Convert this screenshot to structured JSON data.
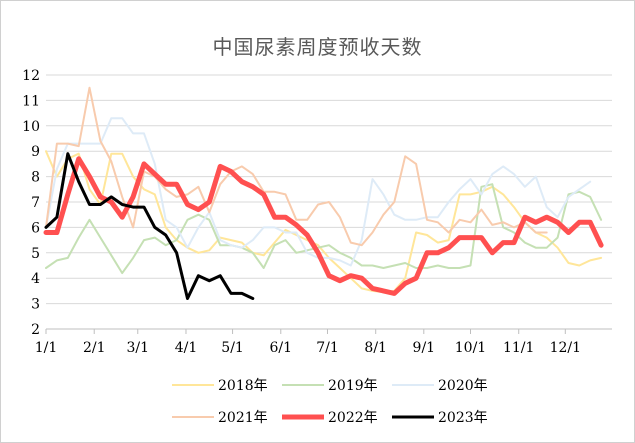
{
  "chart_data": {
    "type": "line",
    "title": "中国尿素周度预收天数",
    "xlabel": "",
    "ylabel": "",
    "ylim": [
      2,
      12
    ],
    "yticks": [
      2,
      3,
      4,
      5,
      6,
      7,
      8,
      9,
      10,
      11,
      12
    ],
    "x_tick_labels": [
      "1/1",
      "2/1",
      "3/1",
      "4/1",
      "5/1",
      "6/1",
      "7/1",
      "8/1",
      "9/1",
      "10/1",
      "11/1",
      "12/1"
    ],
    "x_tick_weeks": [
      0,
      4.43,
      8.43,
      12.86,
      17.14,
      21.57,
      25.86,
      30.29,
      34.71,
      39,
      43.43,
      47.71
    ],
    "x_range_weeks": [
      0,
      52
    ],
    "grid": "horizontal",
    "legend_position": "bottom",
    "series": [
      {
        "name": "2018年",
        "color": "#ffe699",
        "width": 2,
        "values": [
          9.0,
          8.0,
          8.7,
          8.9,
          7.5,
          6.9,
          8.9,
          8.9,
          8.0,
          7.5,
          7.3,
          6.0,
          5.5,
          5.2,
          5.0,
          5.1,
          5.6,
          5.5,
          5.4,
          5.0,
          4.9,
          5.4,
          5.9,
          5.7,
          5.5,
          5.3,
          4.8,
          4.4,
          4.0,
          3.6,
          3.5,
          3.45,
          3.5,
          4.0,
          5.8,
          5.7,
          5.4,
          5.5,
          7.3,
          7.3,
          7.4,
          7.6,
          7.3,
          6.8,
          6.2,
          5.8,
          5.6,
          5.2,
          4.6,
          4.5,
          4.7,
          4.8
        ]
      },
      {
        "name": "2019年",
        "color": "#c5e0b4",
        "width": 2,
        "values": [
          4.4,
          4.7,
          4.8,
          5.6,
          6.3,
          5.6,
          4.9,
          4.2,
          4.8,
          5.5,
          5.6,
          5.3,
          5.5,
          6.3,
          6.5,
          6.3,
          5.3,
          5.3,
          5.2,
          5.0,
          4.4,
          5.3,
          5.5,
          5.0,
          5.1,
          5.2,
          5.3,
          5.0,
          4.8,
          4.5,
          4.5,
          4.4,
          4.5,
          4.6,
          4.4,
          4.4,
          4.5,
          4.4,
          4.4,
          4.5,
          7.6,
          7.7,
          6.0,
          5.8,
          5.4,
          5.2,
          5.2,
          5.6,
          7.3,
          7.4,
          7.2,
          6.3
        ]
      },
      {
        "name": "2020年",
        "color": "#deebf7",
        "width": 2,
        "values": [
          6.0,
          8.3,
          9.3,
          9.3,
          9.3,
          9.3,
          10.3,
          10.3,
          9.7,
          9.7,
          8.5,
          6.3,
          6.0,
          5.2,
          6.0,
          6.6,
          5.5,
          5.3,
          5.2,
          5.5,
          6.0,
          6.0,
          5.8,
          5.8,
          5.0,
          4.8,
          4.8,
          4.7,
          4.5,
          5.5,
          7.9,
          7.3,
          6.5,
          6.3,
          6.3,
          6.4,
          6.4,
          7.0,
          7.5,
          7.9,
          7.3,
          8.1,
          8.4,
          8.1,
          7.6,
          8.0,
          6.8,
          6.4,
          7.2,
          7.5,
          7.8
        ]
      },
      {
        "name": "2021年",
        "color": "#f8cbad",
        "width": 2,
        "values": [
          6.0,
          9.3,
          9.3,
          9.2,
          11.5,
          9.4,
          8.6,
          7.2,
          6.0,
          8.2,
          8.0,
          7.5,
          7.2,
          7.3,
          7.6,
          6.6,
          7.7,
          8.2,
          8.4,
          8.1,
          7.4,
          7.4,
          7.3,
          6.3,
          6.3,
          6.9,
          7.0,
          6.4,
          5.4,
          5.3,
          5.8,
          6.5,
          7.0,
          8.8,
          8.5,
          6.3,
          6.2,
          5.8,
          6.3,
          6.2,
          6.7,
          6.1,
          6.2,
          6.0,
          6.2,
          5.8,
          5.8
        ]
      },
      {
        "name": "2022年",
        "color": "#ff5050",
        "width": 5,
        "values": [
          5.8,
          5.8,
          7.3,
          8.7,
          8.0,
          7.2,
          7.0,
          6.4,
          7.2,
          8.5,
          8.1,
          7.7,
          7.7,
          6.9,
          6.7,
          7.0,
          8.4,
          8.2,
          7.8,
          7.6,
          7.3,
          6.4,
          6.4,
          6.1,
          5.7,
          5.0,
          4.1,
          3.9,
          4.1,
          4.0,
          3.6,
          3.5,
          3.4,
          3.8,
          4.0,
          5.0,
          5.0,
          5.2,
          5.6,
          5.6,
          5.6,
          5.0,
          5.4,
          5.4,
          6.4,
          6.2,
          6.4,
          6.2,
          5.8,
          6.2,
          6.2,
          5.3
        ]
      },
      {
        "name": "2023年",
        "color": "#000000",
        "width": 3,
        "values": [
          6.0,
          6.4,
          8.9,
          7.8,
          6.9,
          6.9,
          7.2,
          6.9,
          6.8,
          6.8,
          6.0,
          5.7,
          5.0,
          3.2,
          4.1,
          3.9,
          4.1,
          3.4,
          3.4,
          3.2
        ]
      }
    ]
  }
}
